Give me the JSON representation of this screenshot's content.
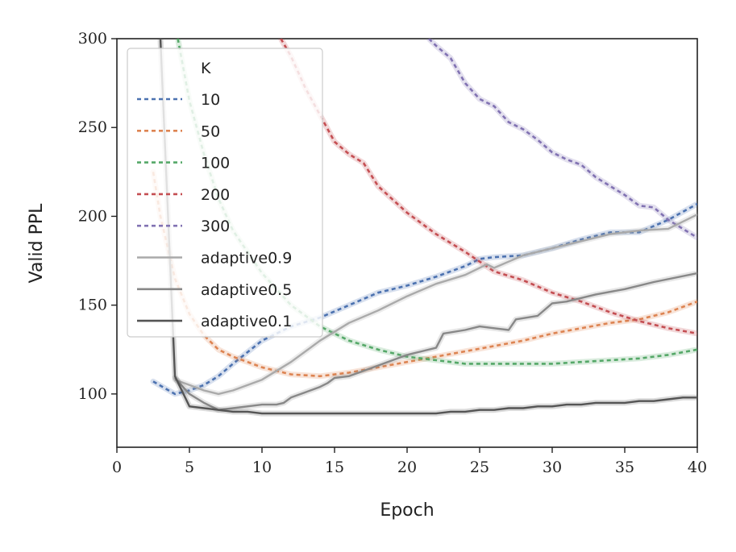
{
  "chart_data": {
    "type": "line",
    "title": "",
    "xlabel": "Epoch",
    "ylabel": "Valid PPL",
    "xlim": [
      0,
      40
    ],
    "ylim": [
      70,
      300
    ],
    "xticks": [
      "0",
      "5",
      "10",
      "15",
      "20",
      "25",
      "30",
      "35",
      "40"
    ],
    "yticks": [
      "100",
      "150",
      "200",
      "250",
      "300"
    ],
    "grid": false,
    "legend": {
      "position": "upper-left",
      "title": "K"
    },
    "series": [
      {
        "name": "10",
        "style": "dashed",
        "color": "#4c72b0",
        "x": [
          2.5,
          4,
          5,
          6,
          7,
          8,
          10,
          12,
          14,
          16,
          18,
          20,
          22,
          24,
          25,
          26,
          28,
          30,
          32,
          34,
          36,
          38,
          40
        ],
        "y": [
          107,
          100,
          102,
          105,
          110,
          117,
          130,
          138,
          143,
          150,
          157,
          161,
          166,
          172,
          176,
          177,
          178,
          182,
          187,
          191,
          191,
          198,
          207
        ]
      },
      {
        "name": "50",
        "style": "dashed",
        "color": "#dd8452",
        "x": [
          2.5,
          3,
          4,
          5,
          6,
          7,
          8,
          10,
          12,
          14,
          16,
          18,
          20,
          22,
          24,
          26,
          28,
          30,
          32,
          34,
          36,
          38,
          40
        ],
        "y": [
          225,
          200,
          165,
          145,
          133,
          125,
          121,
          115,
          111,
          110,
          112,
          115,
          118,
          121,
          124,
          127,
          130,
          134,
          137,
          140,
          142,
          146,
          152
        ]
      },
      {
        "name": "100",
        "style": "dashed",
        "color": "#55a868",
        "x": [
          4.2,
          5,
          6,
          7,
          8,
          10,
          12,
          14,
          16,
          18,
          20,
          22,
          24,
          26,
          28,
          30,
          32,
          34,
          36,
          38,
          40
        ],
        "y": [
          300,
          265,
          235,
          210,
          192,
          168,
          150,
          138,
          130,
          125,
          121,
          119,
          117,
          117,
          117,
          117,
          118,
          119,
          120,
          122,
          125
        ]
      },
      {
        "name": "200",
        "style": "dashed",
        "color": "#c44e52",
        "x": [
          11.3,
          12,
          13,
          14,
          15,
          16,
          17,
          18,
          20,
          22,
          24,
          26,
          28,
          30,
          32,
          34,
          36,
          38,
          40
        ],
        "y": [
          300,
          290,
          272,
          257,
          242,
          235,
          230,
          217,
          202,
          190,
          180,
          169,
          164,
          157,
          152,
          146,
          141,
          137,
          134
        ]
      },
      {
        "name": "300",
        "style": "dashed",
        "color": "#8172b2",
        "x": [
          21.5,
          22,
          23,
          24,
          25,
          26,
          27,
          28,
          29,
          30,
          31,
          32,
          33,
          34,
          35,
          36,
          37,
          38,
          39,
          40
        ],
        "y": [
          300,
          296,
          289,
          275,
          266,
          262,
          253,
          249,
          243,
          236,
          232,
          229,
          222,
          217,
          212,
          206,
          205,
          198,
          193,
          188
        ]
      },
      {
        "name": "adaptive0.9",
        "style": "solid",
        "color": "#aaaaaa",
        "x": [
          4,
          5,
          6,
          7,
          8,
          10,
          12,
          14,
          16,
          18,
          20,
          22,
          24,
          25.5,
          26,
          28,
          30,
          32,
          34,
          36,
          38,
          40
        ],
        "y": [
          108,
          105,
          102,
          100,
          102,
          108,
          118,
          130,
          140,
          147,
          155,
          162,
          167,
          173,
          171,
          178,
          182,
          186,
          190,
          192,
          193,
          201
        ]
      },
      {
        "name": "adaptive0.5",
        "style": "solid",
        "color": "#888888",
        "x": [
          4,
          5,
          6,
          7,
          8,
          9,
          10,
          11,
          11.5,
          12,
          13,
          14,
          14.5,
          15,
          16,
          17,
          18,
          20,
          21,
          22,
          22.5,
          24,
          25,
          26,
          27,
          27.5,
          29,
          30,
          31,
          33,
          35,
          37,
          40
        ],
        "y": [
          109,
          100,
          95,
          91,
          92,
          93,
          94,
          94,
          95,
          98,
          101,
          104,
          106,
          109,
          110,
          113,
          116,
          122,
          124,
          126,
          134,
          136,
          138,
          137,
          136,
          142,
          144,
          151,
          152,
          156,
          159,
          163,
          168
        ]
      },
      {
        "name": "adaptive0.1",
        "style": "solid",
        "color": "#555555",
        "x": [
          3,
          4,
          5,
          6,
          7,
          8,
          9,
          10,
          11,
          12,
          13,
          14,
          15,
          16,
          17,
          18,
          19,
          20,
          21,
          22,
          23,
          24,
          25,
          26,
          27,
          28,
          29,
          30,
          31,
          32,
          33,
          34,
          35,
          36,
          37,
          38,
          39,
          40
        ],
        "y": [
          300,
          110,
          93,
          92,
          91,
          90,
          90,
          89,
          89,
          89,
          89,
          89,
          89,
          89,
          89,
          89,
          89,
          89,
          89,
          89,
          90,
          90,
          91,
          91,
          92,
          92,
          93,
          93,
          94,
          94,
          95,
          95,
          95,
          96,
          96,
          97,
          98,
          98
        ]
      }
    ]
  }
}
